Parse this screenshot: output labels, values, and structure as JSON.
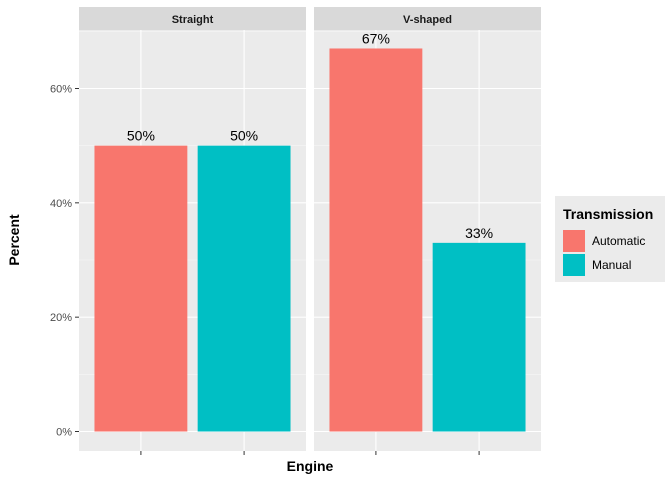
{
  "chart_data": {
    "type": "bar",
    "facet_variable": "Engine",
    "facets": [
      "Straight",
      "V-shaped"
    ],
    "categories": [
      "Automatic",
      "Manual"
    ],
    "series": [
      {
        "name": "Automatic",
        "color": "#F8766D",
        "values": [
          50,
          67
        ]
      },
      {
        "name": "Manual",
        "color": "#00BFC4",
        "values": [
          50,
          33
        ]
      }
    ],
    "data_labels": [
      [
        "50%",
        "50%"
      ],
      [
        "67%",
        "33%"
      ]
    ],
    "xlabel": "Engine",
    "ylabel": "Percent",
    "ylim": [
      0,
      71
    ],
    "y_ticks": [
      0,
      20,
      40,
      60
    ],
    "y_tick_labels": [
      "0%",
      "20%",
      "40%",
      "60%"
    ],
    "grid": true,
    "legend": {
      "title": "Transmission",
      "position": "right",
      "entries": [
        "Automatic",
        "Manual"
      ]
    }
  }
}
